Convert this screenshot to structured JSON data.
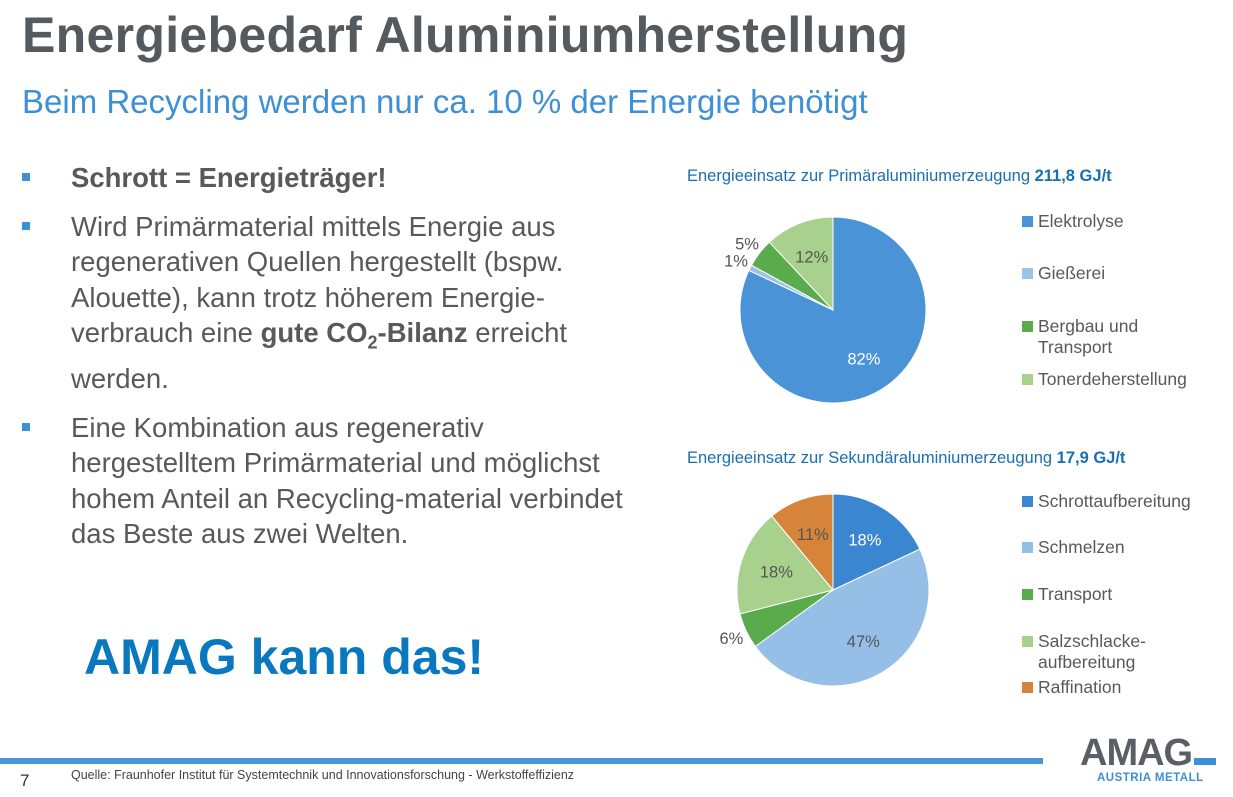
{
  "title": "Energiebedarf Aluminiumherstellung",
  "subtitle": "Beim Recycling werden nur ca. 10 % der Energie benötigt",
  "bullets": [
    {
      "bold": "Schrott = Energieträger!"
    },
    {
      "pre": "Wird Primärmaterial mittels Energie aus regenerativen Quellen hergestellt (bspw. Alouette), kann trotz höherem Energie-verbrauch eine ",
      "bold1": "gute CO",
      "sub": "2",
      "bold2": "-Bilanz",
      "post": " erreicht werden."
    },
    {
      "text": "Eine Kombination aus regenerativ hergestelltem Primärmaterial und möglichst hohem Anteil an Recycling-material verbindet das Beste aus zwei Welten."
    }
  ],
  "claim": "AMAG kann das!",
  "footer": {
    "page": "7",
    "source": "Quelle: Fraunhofer Institut  für Systemtechnik und Innovationsforschung - Werkstoffeffizienz"
  },
  "logo": {
    "name": "AMAG",
    "tagline": "AUSTRIA METALL"
  },
  "chart_data": [
    {
      "type": "pie",
      "title": "Energieeinsatz zur Primäraluminiumerzeugung",
      "title_value": "211,8 GJ/t",
      "categories": [
        "Elektrolyse",
        "Gießerei",
        "Bergbau und Transport",
        "Tonerdeherstellung"
      ],
      "values": [
        82,
        1,
        5,
        12
      ],
      "labels": [
        "82%",
        "1%",
        "5%",
        "12%"
      ],
      "colors": [
        "#4a93d6",
        "#9dc3e6",
        "#5aab4c",
        "#a9d18e"
      ],
      "legend": "right"
    },
    {
      "type": "pie",
      "title": "Energieeinsatz zur Sekundäraluminiumerzeugung",
      "title_value": "17,9 GJ/t",
      "categories": [
        "Schrottaufbereitung",
        "Schmelzen",
        "Transport",
        "Salzschlacke-aufbereitung",
        "Raffination"
      ],
      "values": [
        18,
        47,
        6,
        18,
        11
      ],
      "labels": [
        "18%",
        "47%",
        "6%",
        "18%",
        "11%"
      ],
      "colors": [
        "#3b86d0",
        "#95bfe6",
        "#5aab4c",
        "#a9d18e",
        "#d6843a"
      ],
      "legend": "right"
    }
  ]
}
